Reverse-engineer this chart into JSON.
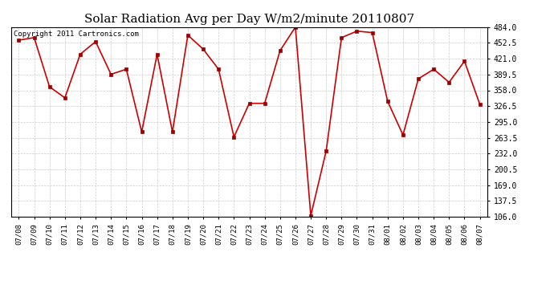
{
  "title": "Solar Radiation Avg per Day W/m2/minute 20110807",
  "copyright_text": "Copyright 2011 Cartronics.com",
  "dates": [
    "07/08",
    "07/09",
    "07/10",
    "07/11",
    "07/12",
    "07/13",
    "07/14",
    "07/15",
    "07/16",
    "07/17",
    "07/18",
    "07/19",
    "07/20",
    "07/21",
    "07/22",
    "07/23",
    "07/24",
    "07/25",
    "07/26",
    "07/27",
    "07/28",
    "07/29",
    "07/30",
    "07/31",
    "08/01",
    "08/02",
    "08/03",
    "08/04",
    "08/05",
    "08/06",
    "08/07"
  ],
  "values": [
    458,
    463,
    365,
    343,
    430,
    455,
    390,
    400,
    275,
    430,
    275,
    468,
    440,
    400,
    265,
    332,
    332,
    437,
    484,
    108,
    237,
    463,
    476,
    473,
    336,
    269,
    381,
    400,
    374,
    416,
    330
  ],
  "ylim_low": 106.0,
  "ylim_high": 484.0,
  "yticks": [
    106.0,
    137.5,
    169.0,
    200.5,
    232.0,
    263.5,
    295.0,
    326.5,
    358.0,
    389.5,
    421.0,
    452.5,
    484.0
  ],
  "line_color": "#cc0000",
  "marker_color": "#990000",
  "bg_color": "#ffffff",
  "grid_color": "#cccccc",
  "title_fontsize": 11,
  "copyright_fontsize": 6.5,
  "tick_fontsize": 6.5,
  "ytick_fontsize": 7
}
